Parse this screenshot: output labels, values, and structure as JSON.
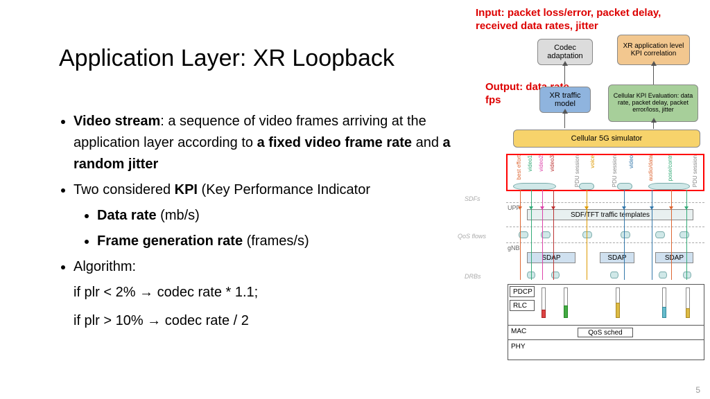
{
  "title": "Application Layer: XR Loopback",
  "notes": {
    "input": "Input: packet loss/error, packet delay, received data rates, jitter",
    "output": "Output: data rate, fps"
  },
  "bullets": {
    "l1_pre": "Video stream",
    "l1_mid": ": a sequence of video frames arriving at the application layer according to ",
    "l1_b1": "a fixed video frame rate",
    "l1_and": " and ",
    "l1_b2": "a random jitter",
    "l2_pre": "Two considered ",
    "l2_b": "KPI",
    "l2_post": " (Key Performance Indicator",
    "l2a_b": "Data rate",
    "l2a_post": " (mb/s)",
    "l2b_b": "Frame generation rate",
    "l2b_post": " (frames/s)",
    "l3": "Algorithm:",
    "algo1": "if plr < 2% → codec rate * 1.1;",
    "algo2": "if plr > 10% → codec rate / 2"
  },
  "diagram": {
    "codec": {
      "label": "Codec adaptation",
      "bg": "#dcdcdc",
      "fs": 11
    },
    "xrcorr": {
      "label": "XR application level KPI correlation",
      "bg": "#f2c78f",
      "fs": 10
    },
    "xrtraffic": {
      "label": "XR traffic model",
      "bg": "#8fb4de",
      "fs": 11
    },
    "cellkpi": {
      "label": "Cellular KPI Evaluation: data rate, packet delay, packet error/loss, jitter",
      "bg": "#a7cf9a",
      "fs": 9
    },
    "sim": {
      "label": "Cellular 5G simulator",
      "bg": "#f7d36b",
      "fs": 11
    },
    "sdf_labels": [
      {
        "t": "best effort",
        "c": "#d63"
      },
      {
        "t": "video1",
        "c": "#3a7"
      },
      {
        "t": "video2",
        "c": "#d4a"
      },
      {
        "t": "video3",
        "c": "#b33"
      },
      {
        "t": "PDU session",
        "c": "#888"
      },
      {
        "t": "voice",
        "c": "#d90"
      },
      {
        "t": "PDU session",
        "c": "#888"
      },
      {
        "t": "video",
        "c": "#37a"
      },
      {
        "t": "audio/data",
        "c": "#d63"
      },
      {
        "t": "pose/contr",
        "c": "#3a7"
      },
      {
        "t": "PDU session",
        "c": "#888"
      }
    ],
    "sdfs": "SDFs",
    "upf": "UPF",
    "tmpl": "SDF/TFT traffic templates",
    "qos": "QoS flows",
    "gnb": "gNB",
    "sdap": "SDAP",
    "drbs": "DRBs",
    "pdcp": "PDCP",
    "rlc": "RLC",
    "mac": "MAC",
    "phy": "PHY",
    "qsched": "QoS sched"
  },
  "page": "5",
  "colors": {
    "red": "#d00",
    "arrow": "#555"
  }
}
